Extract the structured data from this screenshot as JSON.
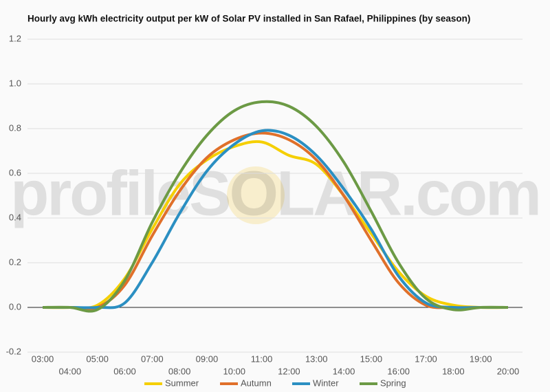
{
  "chart_data": {
    "type": "line",
    "title": "Hourly avg kWh electricity output per kW of Solar PV installed in San Rafael, Philippines (by season)",
    "watermark": "profileSOLAR.com",
    "categories": [
      "03:00",
      "04:00",
      "05:00",
      "06:00",
      "07:00",
      "08:00",
      "09:00",
      "10:00",
      "11:00",
      "12:00",
      "13:00",
      "14:00",
      "15:00",
      "16:00",
      "17:00",
      "18:00",
      "19:00",
      "20:00"
    ],
    "series": [
      {
        "name": "Summer",
        "color": "#f5cf00",
        "values": [
          0,
          0,
          0.01,
          0.13,
          0.35,
          0.55,
          0.66,
          0.72,
          0.74,
          0.68,
          0.64,
          0.5,
          0.33,
          0.16,
          0.05,
          0.01,
          0,
          0
        ]
      },
      {
        "name": "Autumn",
        "color": "#e0702a",
        "values": [
          0,
          0,
          0,
          0.1,
          0.32,
          0.52,
          0.67,
          0.75,
          0.78,
          0.75,
          0.66,
          0.5,
          0.3,
          0.11,
          0.01,
          0,
          0,
          0
        ]
      },
      {
        "name": "Winter",
        "color": "#2b8fc2",
        "values": [
          0,
          0,
          0,
          0.02,
          0.2,
          0.42,
          0.61,
          0.73,
          0.79,
          0.77,
          0.68,
          0.53,
          0.35,
          0.14,
          0.02,
          0,
          0,
          0
        ]
      },
      {
        "name": "Spring",
        "color": "#6c9a45",
        "values": [
          0,
          0,
          -0.01,
          0.12,
          0.38,
          0.6,
          0.77,
          0.88,
          0.92,
          0.9,
          0.81,
          0.65,
          0.43,
          0.2,
          0.04,
          -0.01,
          0,
          0
        ]
      }
    ],
    "ylim": [
      -0.2,
      1.2
    ],
    "yticks": [
      -0.2,
      {
        "value": 0,
        "label": "0.0"
      },
      0.2,
      0.4,
      0.6,
      0.8,
      {
        "value": 1,
        "label": "1.0"
      },
      1.2
    ],
    "grid": true
  }
}
